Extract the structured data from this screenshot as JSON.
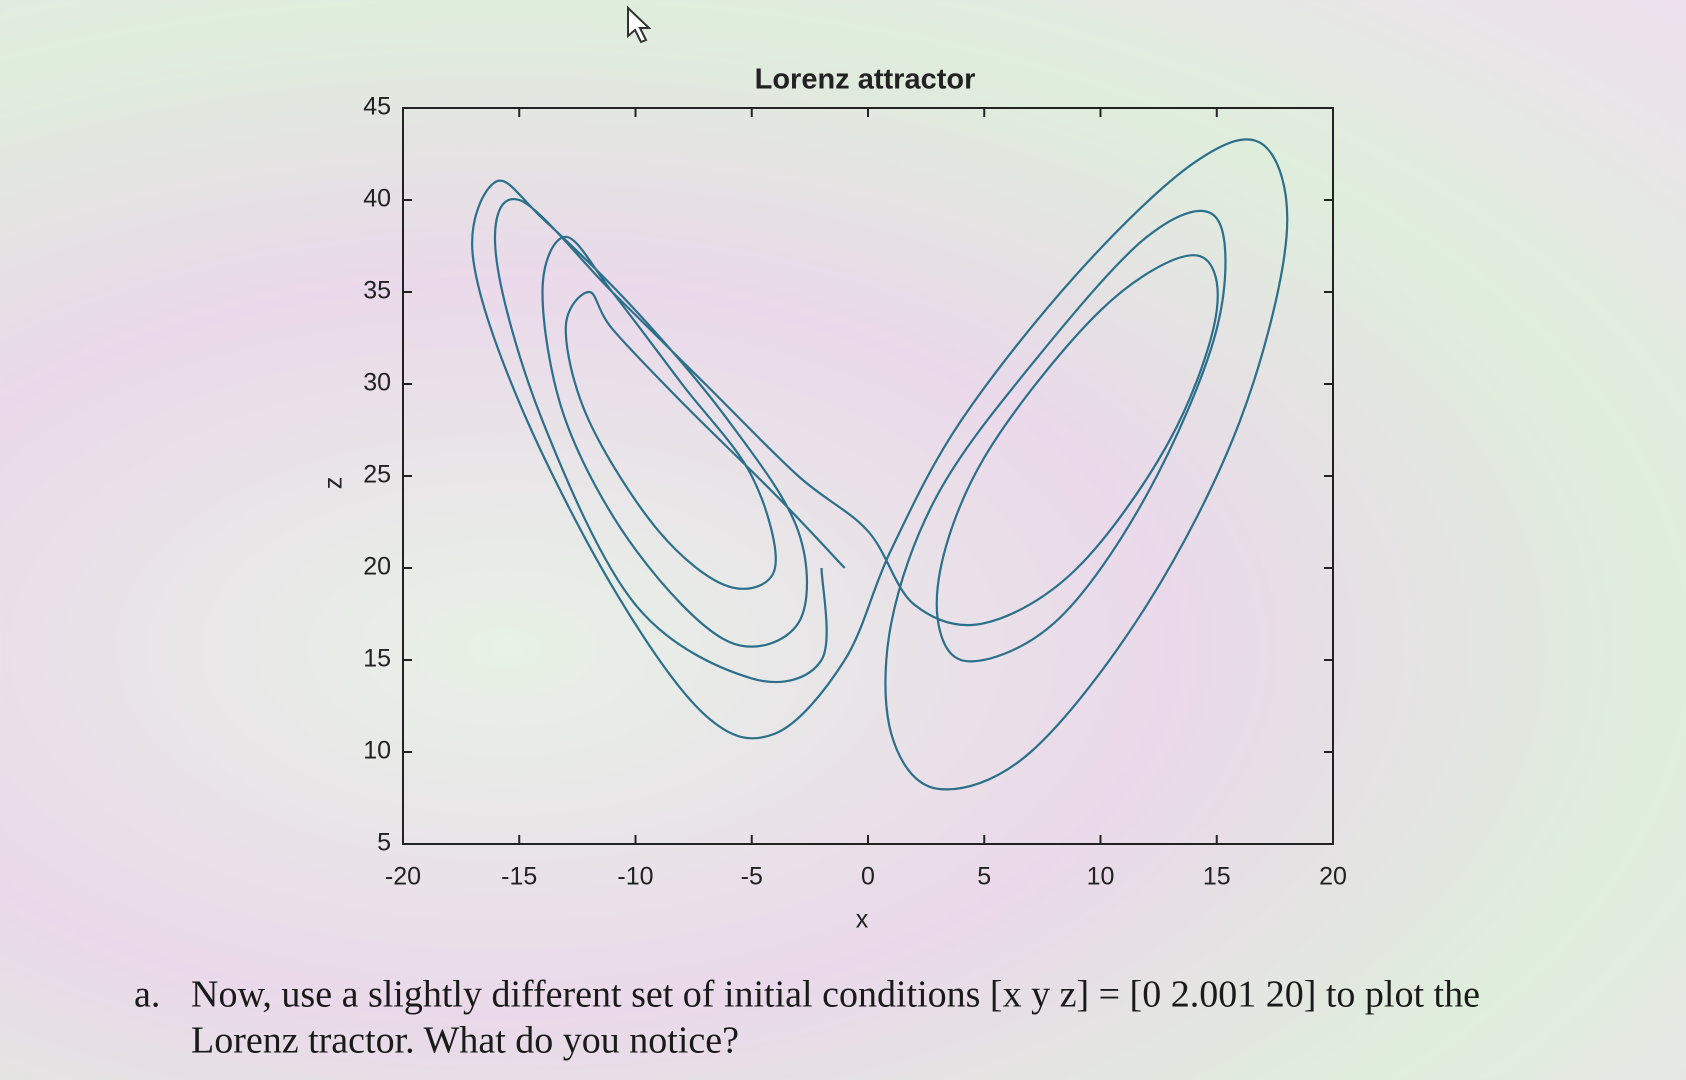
{
  "chart_data": {
    "type": "line",
    "title": "Lorenz attractor",
    "x_label": "x",
    "y_label": "z",
    "x": [
      -1,
      -4,
      -8,
      -11,
      -12,
      -13,
      -12,
      -9,
      -6,
      -4,
      -5,
      -8,
      -11,
      -13,
      -14,
      -13,
      -10,
      -6,
      -3,
      -3,
      -6,
      -10,
      -14,
      -16,
      -17,
      -15,
      -11,
      -7,
      -4,
      -1,
      1,
      4,
      9,
      14,
      17,
      18,
      16,
      12,
      7,
      3,
      1,
      1,
      3,
      7,
      12,
      15,
      15,
      12,
      8,
      4,
      3,
      5,
      10,
      14,
      15,
      13,
      9,
      5,
      2,
      0,
      -3,
      -7,
      -11,
      -15,
      -16,
      -14,
      -10,
      -5,
      -2,
      -2
    ],
    "values": [
      20,
      24,
      29,
      33,
      35,
      33,
      28,
      22,
      19,
      20,
      25,
      30,
      35,
      38,
      35,
      28,
      21,
      16,
      17,
      22,
      28,
      34,
      39,
      41,
      37,
      29,
      19,
      12,
      11,
      15,
      21,
      28,
      36,
      42,
      43,
      38,
      28,
      18,
      10,
      8,
      11,
      17,
      24,
      31,
      38,
      39,
      33,
      24,
      17,
      15,
      19,
      26,
      34,
      37,
      34,
      27,
      20,
      17,
      18,
      22,
      25,
      30,
      35,
      40,
      37,
      28,
      18,
      14,
      15,
      20
    ],
    "color": "#2b6f8a",
    "xlim": [
      -20,
      20
    ],
    "xticks": [
      -20,
      -15,
      -10,
      -5,
      0,
      5,
      10,
      15,
      20
    ],
    "ylim": [
      5,
      45
    ],
    "yticks": [
      5,
      10,
      15,
      20,
      25,
      30,
      35,
      40,
      45
    ]
  },
  "question": {
    "marker": "a.",
    "lines": [
      "Now, use a slightly different set of initial conditions [x y z] = [0 2.001 20] to plot the",
      "Lorenz tractor. What do you notice?"
    ]
  }
}
